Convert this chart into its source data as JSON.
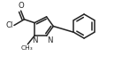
{
  "bg_color": "#ffffff",
  "line_color": "#222222",
  "line_width": 1.1,
  "font_size": 6.2,
  "figsize": [
    1.38,
    0.72
  ],
  "dpi": 100,
  "xlim": [
    0,
    138
  ],
  "ylim": [
    0,
    72
  ]
}
